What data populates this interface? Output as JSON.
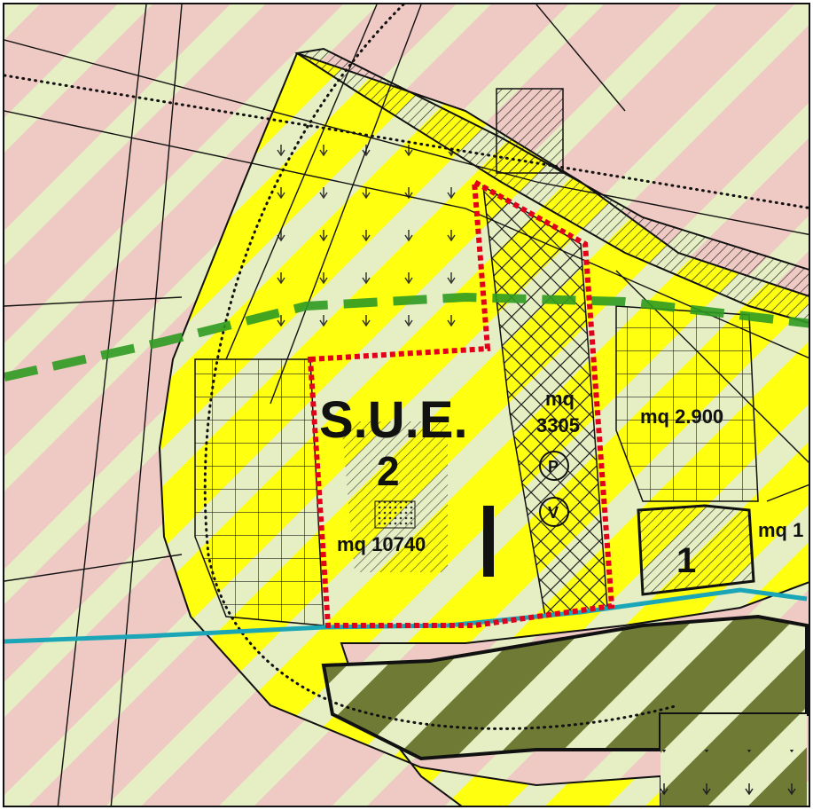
{
  "map": {
    "zone_main": {
      "line1": "S.U.E.",
      "line2": "2"
    },
    "labels": {
      "area_main": "mq 10740",
      "area_strip_unit": "mq",
      "area_strip_value": "3305",
      "area_east": "mq 2.900",
      "area_right_edge": "mq 1",
      "sub_zone_number": "1"
    },
    "symbols": {
      "parking": "P",
      "green": "V"
    },
    "colors": {
      "agricultural_pink": "#efc9c3",
      "stripe_light": "#e6efc4",
      "residential_yellow": "#ffff10",
      "boundary_red": "#e3001b",
      "ecological_corridor_green": "#2f9a22",
      "watercourse_cyan": "#1aa6b7",
      "olive_zone": "#6f7a35",
      "outline": "#111111"
    }
  }
}
